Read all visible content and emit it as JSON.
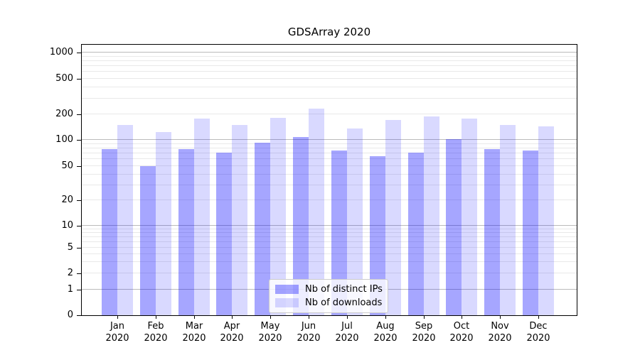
{
  "figure": {
    "background": "#ffffff"
  },
  "chart_data": {
    "type": "bar",
    "title": "GDSArray 2020",
    "categories": [
      "Jan",
      "Feb",
      "Mar",
      "Apr",
      "May",
      "Jun",
      "Jul",
      "Aug",
      "Sep",
      "Oct",
      "Nov",
      "Dec"
    ],
    "year_label": "2020",
    "series": [
      {
        "name": "Nb of distinct IPs",
        "color": "rgba(0,0,255,0.35)",
        "values": [
          79,
          50,
          78,
          72,
          93,
          108,
          76,
          65,
          71,
          102,
          79,
          75
        ]
      },
      {
        "name": "Nb of downloads",
        "color": "rgba(0,0,255,0.15)",
        "values": [
          150,
          124,
          178,
          150,
          181,
          232,
          136,
          170,
          188,
          178,
          149,
          143
        ]
      }
    ],
    "yticks": [
      1000,
      500,
      200,
      100,
      50,
      20,
      10,
      5,
      2,
      1,
      0
    ],
    "yscale": "symlog",
    "ylim": [
      0,
      1070
    ],
    "grid": true,
    "grid_major_color": "#bbbbbb",
    "grid_minor_color": "#e9e9e9",
    "legend": {
      "position": "lower center",
      "entries": [
        "Nb of distinct IPs",
        "Nb of downloads"
      ]
    }
  }
}
